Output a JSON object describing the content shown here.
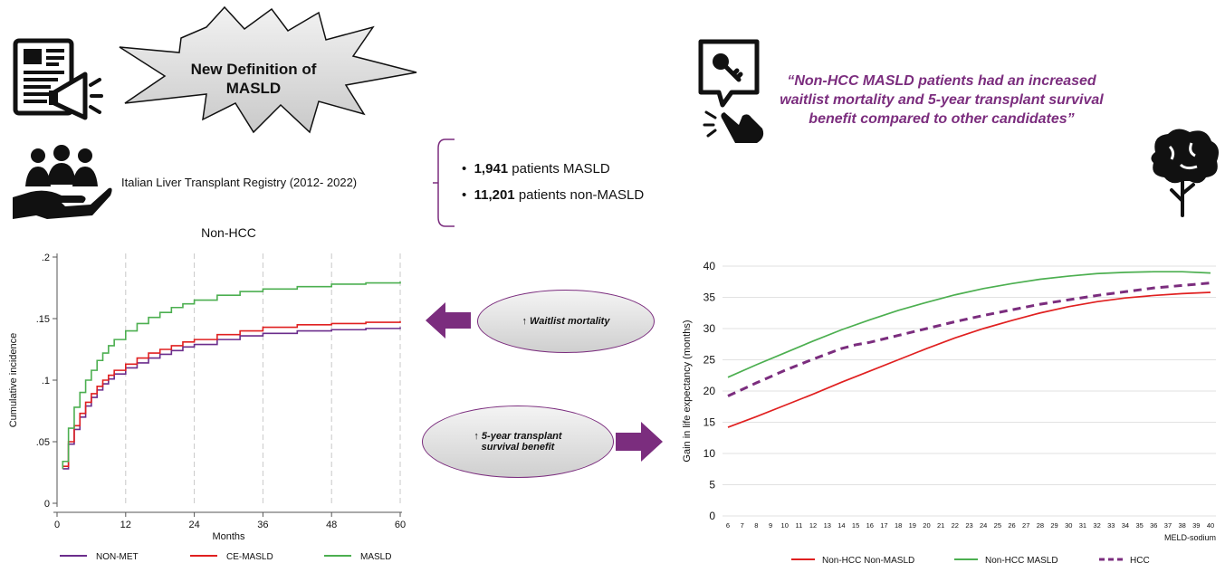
{
  "header": {
    "star_text_line1": "New Definition of",
    "star_text_line2": "MASLD",
    "registry": "Italian Liver Transplant Registry (2012- 2022)",
    "stat1_value": "1,941",
    "stat1_text": " patients MASLD",
    "stat2_value": "11,201",
    "stat2_text": " patients non-MASLD",
    "quote": "“Non-HCC MASLD patients had an increased waitlist mortality and 5-year transplant survival benefit compared to other candidates”"
  },
  "callouts": {
    "waitlist": "Waitlist mortality",
    "survival_line1": "5-year transplant",
    "survival_line2": "survival benefit",
    "up_arrow": "↑",
    "arrow_color": "#7b2d7e"
  },
  "icons": [
    "newspaper-icon",
    "megaphone-icon",
    "people-hand-icon",
    "key-speech-icon",
    "pointing-hand-icon",
    "brain-tree-icon"
  ],
  "chart_data": [
    {
      "type": "line",
      "title": "Non-HCC",
      "xlabel": "Months",
      "ylabel": "Cumulative incidence",
      "xlim": [
        0,
        60
      ],
      "ylim": [
        0,
        0.2
      ],
      "xticks": [
        0,
        12,
        24,
        36,
        48,
        60
      ],
      "yticks": [
        0,
        0.05,
        0.1,
        0.15,
        0.2
      ],
      "ytick_labels": [
        "0",
        ".05",
        ".1",
        ".15",
        ".2"
      ],
      "step": true,
      "series": [
        {
          "name": "NON-MET",
          "color": "#6b2d8c",
          "x": [
            1,
            2,
            3,
            4,
            5,
            6,
            7,
            8,
            9,
            10,
            12,
            14,
            16,
            18,
            20,
            22,
            24,
            28,
            32,
            36,
            42,
            48,
            54,
            60
          ],
          "y": [
            0.028,
            0.048,
            0.06,
            0.07,
            0.079,
            0.086,
            0.092,
            0.097,
            0.101,
            0.105,
            0.11,
            0.114,
            0.118,
            0.121,
            0.124,
            0.127,
            0.129,
            0.133,
            0.136,
            0.138,
            0.14,
            0.141,
            0.142,
            0.143
          ]
        },
        {
          "name": "CE-MASLD",
          "color": "#e02020",
          "x": [
            1,
            2,
            3,
            4,
            5,
            6,
            7,
            8,
            9,
            10,
            12,
            14,
            16,
            18,
            20,
            22,
            24,
            28,
            32,
            36,
            42,
            48,
            54,
            60
          ],
          "y": [
            0.03,
            0.05,
            0.063,
            0.073,
            0.082,
            0.089,
            0.095,
            0.1,
            0.104,
            0.108,
            0.113,
            0.118,
            0.122,
            0.125,
            0.128,
            0.131,
            0.133,
            0.137,
            0.14,
            0.143,
            0.145,
            0.146,
            0.147,
            0.148
          ]
        },
        {
          "name": "MASLD",
          "color": "#4caf50",
          "x": [
            1,
            2,
            3,
            4,
            5,
            6,
            7,
            8,
            9,
            10,
            12,
            14,
            16,
            18,
            20,
            22,
            24,
            28,
            32,
            36,
            42,
            48,
            54,
            60
          ],
          "y": [
            0.034,
            0.061,
            0.078,
            0.09,
            0.1,
            0.108,
            0.116,
            0.122,
            0.128,
            0.133,
            0.14,
            0.146,
            0.151,
            0.155,
            0.159,
            0.162,
            0.165,
            0.169,
            0.172,
            0.174,
            0.176,
            0.178,
            0.179,
            0.18
          ]
        }
      ]
    },
    {
      "type": "line",
      "title": "",
      "xlabel": "MELD-sodium",
      "ylabel": "Gain in life expectancy (months)",
      "xlim": [
        6,
        40
      ],
      "ylim": [
        0,
        40
      ],
      "xticks": [
        6,
        7,
        8,
        9,
        10,
        11,
        12,
        13,
        14,
        15,
        16,
        17,
        18,
        19,
        20,
        21,
        22,
        23,
        24,
        25,
        26,
        27,
        28,
        29,
        30,
        31,
        32,
        33,
        34,
        35,
        36,
        37,
        38,
        39,
        40
      ],
      "yticks": [
        0,
        5,
        10,
        15,
        20,
        25,
        30,
        35,
        40
      ],
      "grid": true,
      "series": [
        {
          "name": "Non-HCC Non-MASLD",
          "color": "#e02020",
          "dash": false,
          "x": [
            6,
            8,
            10,
            12,
            14,
            16,
            18,
            20,
            22,
            24,
            26,
            28,
            30,
            32,
            34,
            36,
            38,
            40
          ],
          "y": [
            14.2,
            15.9,
            17.7,
            19.5,
            21.4,
            23.2,
            25.0,
            26.8,
            28.5,
            30.0,
            31.3,
            32.5,
            33.5,
            34.3,
            34.9,
            35.3,
            35.6,
            35.8
          ]
        },
        {
          "name": "Non-HCC MASLD",
          "color": "#4caf50",
          "dash": false,
          "x": [
            6,
            8,
            10,
            12,
            14,
            16,
            18,
            20,
            22,
            24,
            26,
            28,
            30,
            32,
            34,
            36,
            38,
            40
          ],
          "y": [
            22.2,
            24.2,
            26.1,
            28.0,
            29.8,
            31.4,
            32.9,
            34.2,
            35.4,
            36.4,
            37.2,
            37.9,
            38.4,
            38.8,
            39.0,
            39.1,
            39.1,
            38.9
          ]
        },
        {
          "name": "HCC",
          "color": "#7b2d7e",
          "dash": true,
          "x": [
            6,
            8,
            10,
            12,
            14,
            15,
            16,
            18,
            20,
            22,
            24,
            26,
            28,
            30,
            32,
            34,
            36,
            38,
            40
          ],
          "y": [
            19.2,
            21.3,
            23.3,
            25.1,
            26.8,
            27.4,
            27.8,
            28.9,
            30.0,
            31.1,
            32.1,
            33.0,
            33.9,
            34.6,
            35.3,
            35.9,
            36.5,
            36.9,
            37.3
          ]
        }
      ]
    }
  ]
}
